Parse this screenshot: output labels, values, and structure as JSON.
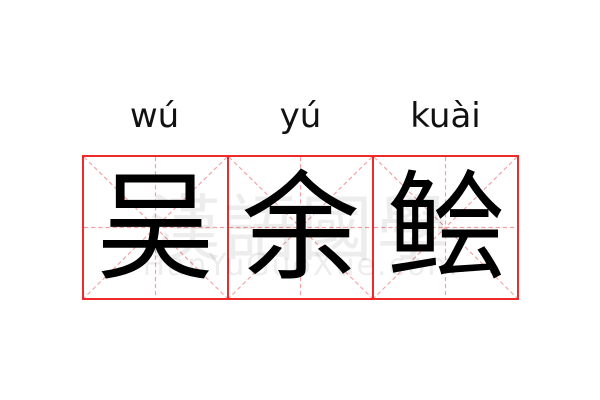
{
  "entries": [
    {
      "pinyin": "wú",
      "char": "吴"
    },
    {
      "pinyin": "yú",
      "char": "余"
    },
    {
      "pinyin": "kuài",
      "char": "鲙"
    }
  ],
  "watermark": {
    "chinese": "漢語國學",
    "latin": "HanYuGuoXue.com"
  },
  "colors": {
    "grid_border": "#ee2a2a",
    "grid_guides": "#f4a0a0"
  }
}
